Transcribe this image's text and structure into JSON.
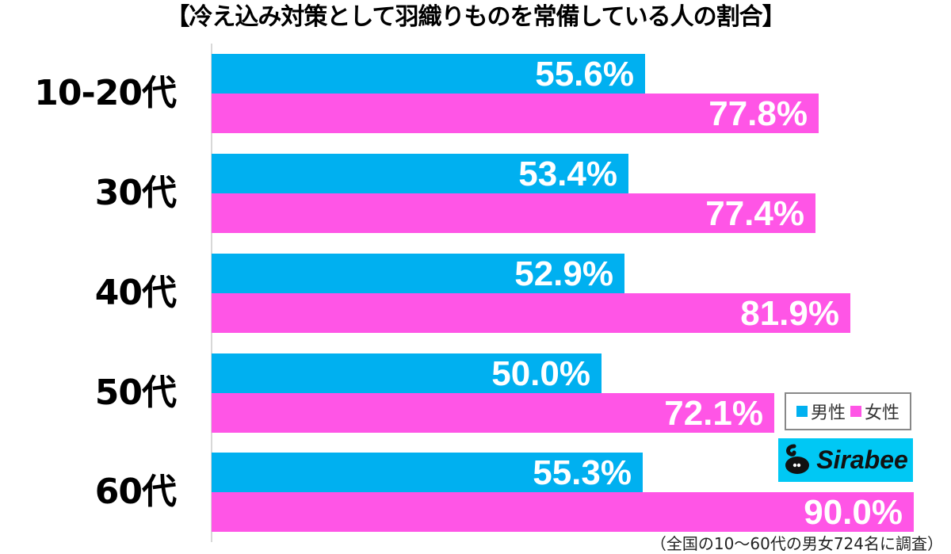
{
  "title": "【冷え込み対策として羽織りものを常備している人の割合】",
  "colors": {
    "male": "#00b0f0",
    "female": "#ff55e6",
    "logo_bg": "#00c8f4"
  },
  "legend": {
    "male_label": "男性",
    "female_label": "女性"
  },
  "logo": {
    "text": "Sirabee",
    "icon": "sirabee-swan-icon"
  },
  "footnote": "（全国の10〜60代の男女724名に調査）",
  "groups": [
    {
      "label": "10-20代",
      "male": "55.6%",
      "female": "77.8%"
    },
    {
      "label": "30代",
      "male": "53.4%",
      "female": "77.4%"
    },
    {
      "label": "40代",
      "male": "52.9%",
      "female": "81.9%"
    },
    {
      "label": "50代",
      "male": "50.0%",
      "female": "72.1%"
    },
    {
      "label": "60代",
      "male": "55.3%",
      "female": "90.0%"
    }
  ],
  "chart_data": {
    "type": "bar",
    "orientation": "horizontal",
    "title": "【冷え込み対策として羽織りものを常備している人の割合】",
    "categories": [
      "10-20代",
      "30代",
      "40代",
      "50代",
      "60代"
    ],
    "series": [
      {
        "name": "男性",
        "color": "#00b0f0",
        "values": [
          55.6,
          53.4,
          52.9,
          50.0,
          55.3
        ]
      },
      {
        "name": "女性",
        "color": "#ff55e6",
        "values": [
          77.8,
          77.4,
          81.9,
          72.1,
          90.0
        ]
      }
    ],
    "xlabel": "",
    "ylabel": "",
    "unit": "%",
    "xlim": [
      0,
      90
    ],
    "grid": false,
    "legend_position": "lower right",
    "data_labels": true,
    "note": "（全国の10〜60代の男女724名に調査）"
  }
}
